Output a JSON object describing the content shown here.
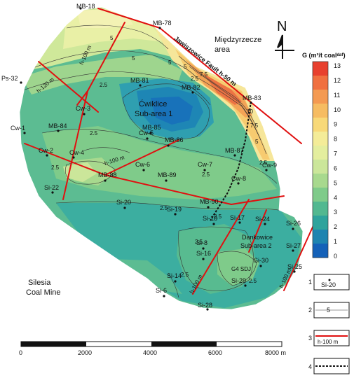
{
  "map": {
    "areas": {
      "miedzyrzecze_1": "Międzyrzecze",
      "miedzyrzecze_2": "area",
      "cwiklice_1": "Ćwiklice",
      "cwiklice_2": "Sub-area 1",
      "dankowice_1": "Dankowice",
      "dankowice_2": "Sub-area 2",
      "silesia_1": "Silesia",
      "silesia_2": "Coal Mine",
      "g4": "G4 SDJ"
    },
    "fault_label": "Jawiszowice Fault h-50 m",
    "fault_h_labels": [
      "h-100 m",
      "h-120 m",
      "h-100 m",
      "h-100 m",
      "h-100 m"
    ],
    "boreholes": [
      "MB-18",
      "MB-78",
      "Ps-32",
      "MB-81",
      "MB-82",
      "MB-83",
      "Cw-3",
      "Cw-1",
      "MB-84",
      "MB-85",
      "Cw-5",
      "MB-86",
      "Cw-2",
      "Cw-4",
      "Cw-6",
      "Cw-7",
      "MB-87",
      "Cw-9",
      "Cw-8",
      "MB-88",
      "MB-89",
      "Si-22",
      "Si-20",
      "Si-19",
      "MB-90",
      "Si-18",
      "Si-17",
      "Si-24",
      "Si-26",
      "Si-8",
      "Si-16",
      "Si-27",
      "Si-30",
      "Si-25",
      "Si-14",
      "Si-29",
      "Si-6",
      "Si-28"
    ],
    "contour_labels": [
      "5",
      "5",
      "5",
      "7.5",
      "2.5",
      "2.5",
      "10",
      "7.5",
      "5",
      "2.5",
      "2.5",
      "2.5",
      "2.5",
      "2.5",
      "2.5",
      "2.5",
      "2.5",
      "2.5",
      "5"
    ],
    "north": "N"
  },
  "colorbar": {
    "title": "G (m³/t coalᵈᵃᶠ)",
    "ticks": [
      "13",
      "12",
      "11",
      "10",
      "9",
      "8",
      "7",
      "6",
      "5",
      "4",
      "3",
      "2",
      "1",
      "0"
    ],
    "colors": [
      "#e8402e",
      "#f07040",
      "#f49a52",
      "#f6bc62",
      "#f8d978",
      "#f4ec98",
      "#e4ee9e",
      "#cbe69a",
      "#a8d98e",
      "#7fcb8a",
      "#52b890",
      "#2ea39c",
      "#1e84b0",
      "#1461b8"
    ]
  },
  "legend": {
    "items": [
      {
        "num": "1",
        "text": "Si-20"
      },
      {
        "num": "2",
        "text": "5"
      },
      {
        "num": "3",
        "text": "h-100 m"
      },
      {
        "num": "4",
        "text": ""
      }
    ]
  },
  "scale_bar": {
    "ticks": [
      "0",
      "2000",
      "4000",
      "6000",
      "8000 m"
    ]
  }
}
